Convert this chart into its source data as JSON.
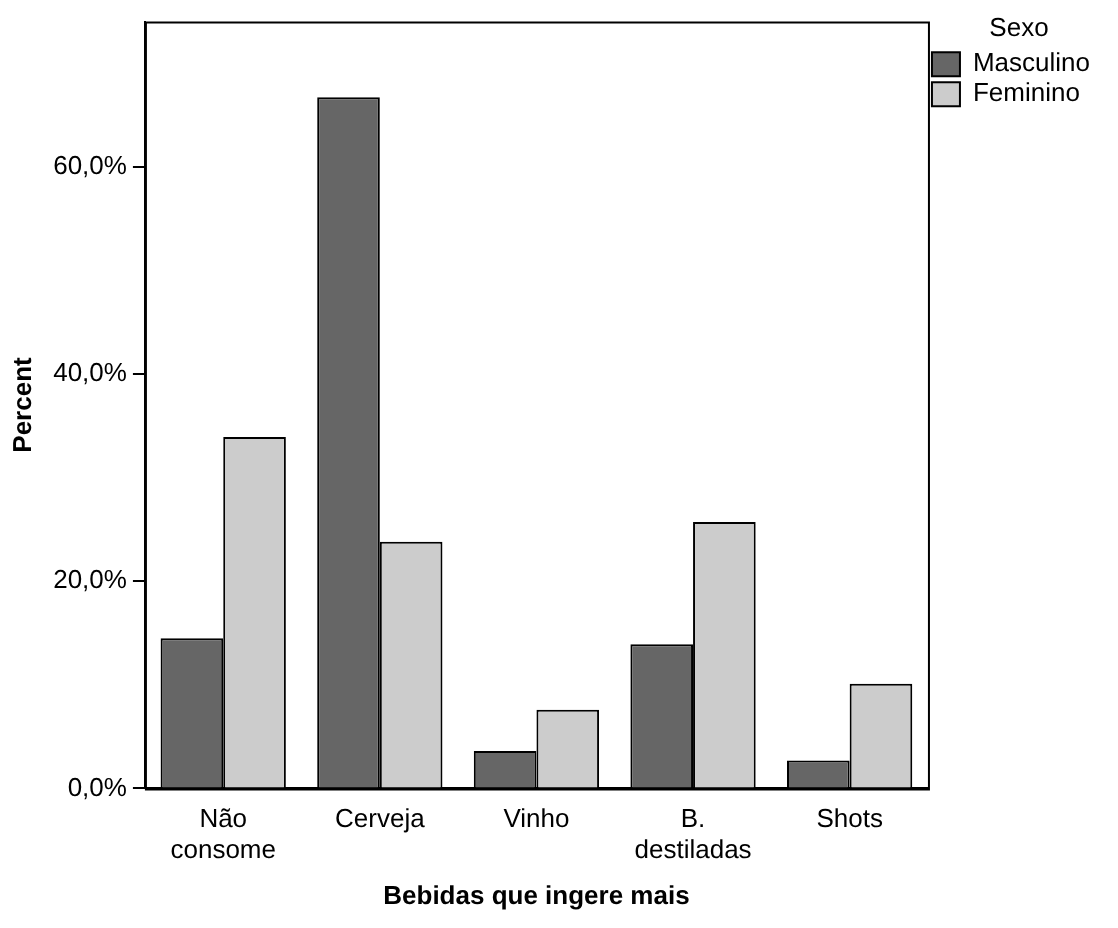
{
  "chart_data": {
    "type": "bar",
    "xlabel": "Bebidas que ingere mais",
    "ylabel": "Percent",
    "legend_title": "Sexo",
    "legend": "top right",
    "categories": [
      "Não consome",
      "Cerveja",
      "Vinho",
      "B. destiladas",
      "Shots"
    ],
    "series": [
      {
        "name": "Masculino",
        "color": "#666666",
        "values": [
          14.5,
          66.7,
          3.6,
          13.9,
          2.7
        ]
      },
      {
        "name": "Feminino",
        "color": "#cccccc",
        "values": [
          33.9,
          23.8,
          7.6,
          25.7,
          10.1
        ]
      }
    ],
    "ylim": [
      0,
      74
    ],
    "yticks": [
      {
        "value": 0,
        "label": "0,0%"
      },
      {
        "value": 20,
        "label": "20,0%"
      },
      {
        "value": 40,
        "label": "40,0%"
      },
      {
        "value": 60,
        "label": "60,0%"
      }
    ],
    "grid": false
  }
}
